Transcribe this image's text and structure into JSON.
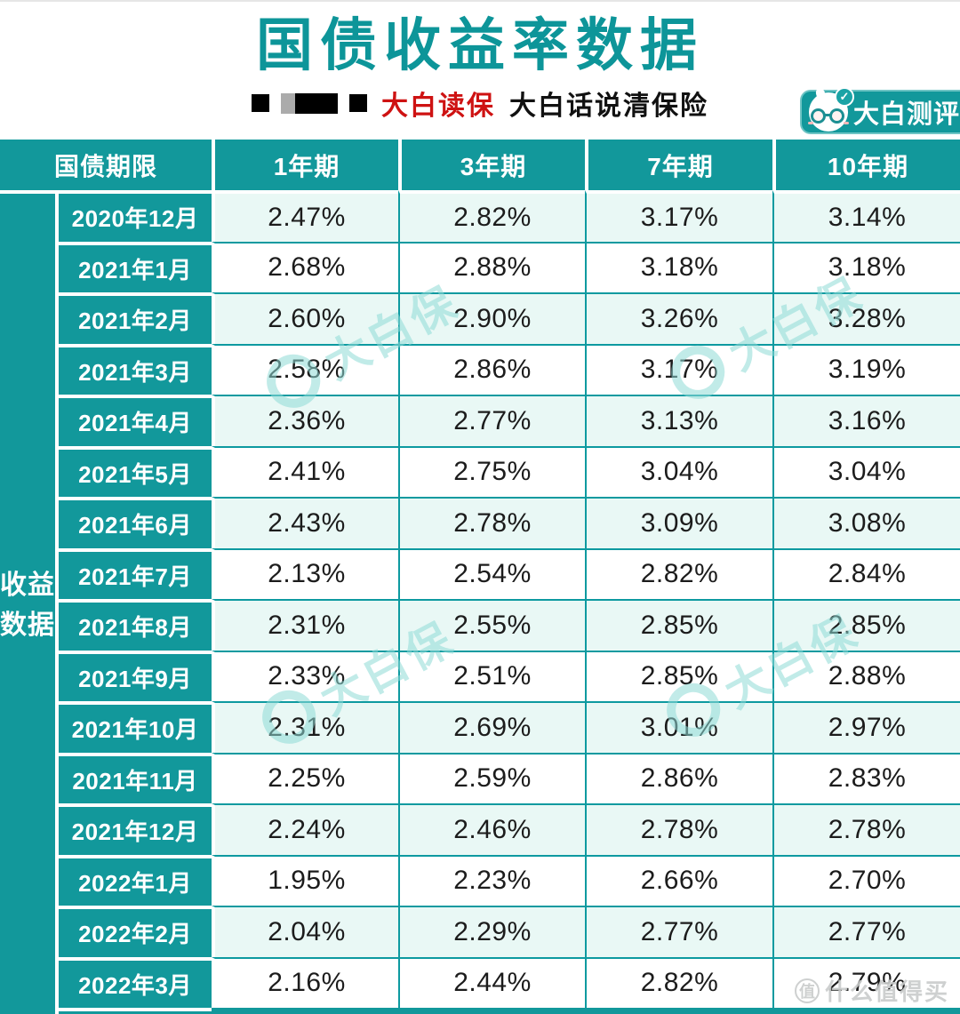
{
  "header": {
    "title": "国债收益率数据",
    "subtitle_brand": "大白读保",
    "subtitle_tagline": "大白话说清保险",
    "badge_label": "大白测评"
  },
  "watermarks": {
    "diagonal_label": "大白保",
    "bottom_icon_char": "值",
    "bottom_label": "什么值得买"
  },
  "table": {
    "corner_header": "国债期限",
    "col_headers": [
      "1年期",
      "3年期",
      "7年期",
      "10年期"
    ],
    "group_label": "收益数据",
    "rows": [
      {
        "month": "2020年12月",
        "values": [
          "2.47%",
          "2.82%",
          "3.17%",
          "3.14%"
        ]
      },
      {
        "month": "2021年1月",
        "values": [
          "2.68%",
          "2.88%",
          "3.18%",
          "3.18%"
        ]
      },
      {
        "month": "2021年2月",
        "values": [
          "2.60%",
          "2.90%",
          "3.26%",
          "3.28%"
        ]
      },
      {
        "month": "2021年3月",
        "values": [
          "2.58%",
          "2.86%",
          "3.17%",
          "3.19%"
        ]
      },
      {
        "month": "2021年4月",
        "values": [
          "2.36%",
          "2.77%",
          "3.13%",
          "3.16%"
        ]
      },
      {
        "month": "2021年5月",
        "values": [
          "2.41%",
          "2.75%",
          "3.04%",
          "3.04%"
        ]
      },
      {
        "month": "2021年6月",
        "values": [
          "2.43%",
          "2.78%",
          "3.09%",
          "3.08%"
        ]
      },
      {
        "month": "2021年7月",
        "values": [
          "2.13%",
          "2.54%",
          "2.82%",
          "2.84%"
        ]
      },
      {
        "month": "2021年8月",
        "values": [
          "2.31%",
          "2.55%",
          "2.85%",
          "2.85%"
        ]
      },
      {
        "month": "2021年9月",
        "values": [
          "2.33%",
          "2.51%",
          "2.85%",
          "2.88%"
        ]
      },
      {
        "month": "2021年10月",
        "values": [
          "2.31%",
          "2.69%",
          "3.01%",
          "2.97%"
        ]
      },
      {
        "month": "2021年11月",
        "values": [
          "2.25%",
          "2.59%",
          "2.86%",
          "2.83%"
        ]
      },
      {
        "month": "2021年12月",
        "values": [
          "2.24%",
          "2.46%",
          "2.78%",
          "2.78%"
        ]
      },
      {
        "month": "2022年1月",
        "values": [
          "1.95%",
          "2.23%",
          "2.66%",
          "2.70%"
        ]
      },
      {
        "month": "2022年2月",
        "values": [
          "2.04%",
          "2.29%",
          "2.77%",
          "2.77%"
        ]
      },
      {
        "month": "2022年3月",
        "values": [
          "2.16%",
          "2.44%",
          "2.82%",
          "2.79%"
        ]
      }
    ]
  },
  "colors": {
    "teal": "#12989B",
    "grid_line_teal": "#0D9AA0",
    "light_row": "#E9F8F5",
    "title_teal": "#0D9599",
    "brand_red": "#CE1212"
  },
  "chart_data": {
    "type": "table",
    "title": "国债收益率数据",
    "columns": [
      "国债期限",
      "1年期",
      "3年期",
      "7年期",
      "10年期"
    ],
    "unit": "%",
    "rows": [
      [
        "2020年12月",
        2.47,
        2.82,
        3.17,
        3.14
      ],
      [
        "2021年1月",
        2.68,
        2.88,
        3.18,
        3.18
      ],
      [
        "2021年2月",
        2.6,
        2.9,
        3.26,
        3.28
      ],
      [
        "2021年3月",
        2.58,
        2.86,
        3.17,
        3.19
      ],
      [
        "2021年4月",
        2.36,
        2.77,
        3.13,
        3.16
      ],
      [
        "2021年5月",
        2.41,
        2.75,
        3.04,
        3.04
      ],
      [
        "2021年6月",
        2.43,
        2.78,
        3.09,
        3.08
      ],
      [
        "2021年7月",
        2.13,
        2.54,
        2.82,
        2.84
      ],
      [
        "2021年8月",
        2.31,
        2.55,
        2.85,
        2.85
      ],
      [
        "2021年9月",
        2.33,
        2.51,
        2.85,
        2.88
      ],
      [
        "2021年10月",
        2.31,
        2.69,
        3.01,
        2.97
      ],
      [
        "2021年11月",
        2.25,
        2.59,
        2.86,
        2.83
      ],
      [
        "2021年12月",
        2.24,
        2.46,
        2.78,
        2.78
      ],
      [
        "2022年1月",
        1.95,
        2.23,
        2.66,
        2.7
      ],
      [
        "2022年2月",
        2.04,
        2.29,
        2.77,
        2.77
      ],
      [
        "2022年3月",
        2.16,
        2.44,
        2.82,
        2.79
      ]
    ]
  }
}
